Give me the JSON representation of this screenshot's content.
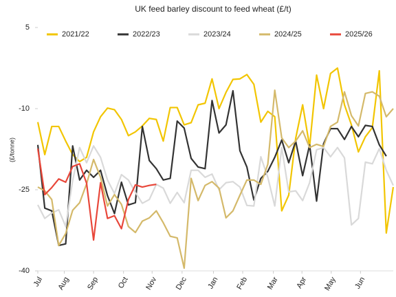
{
  "chart_data": {
    "type": "line",
    "title": "UK feed barley discount to feed wheat (£/t)",
    "y_label": "(£/tonne)",
    "xlim": [
      0,
      51
    ],
    "xticks": [
      {
        "value": 0,
        "label": "Jul"
      },
      {
        "value": 3.8,
        "label": "Aug"
      },
      {
        "value": 8,
        "label": "Sep"
      },
      {
        "value": 12.3,
        "label": "Oct"
      },
      {
        "value": 16.4,
        "label": "Nov"
      },
      {
        "value": 20.7,
        "label": "Dec"
      },
      {
        "value": 25.2,
        "label": "Jan"
      },
      {
        "value": 29.4,
        "label": "Feb"
      },
      {
        "value": 33.8,
        "label": "Mar"
      },
      {
        "value": 37.9,
        "label": "Apr"
      },
      {
        "value": 42.1,
        "label": "May"
      },
      {
        "value": 46.3,
        "label": "Jun"
      }
    ],
    "ylim": [
      -40,
      5
    ],
    "yticks": [
      5,
      -10,
      -25,
      -40
    ],
    "grid": false,
    "legend": "top",
    "series": [
      {
        "name": "2021/22",
        "color": "#f2c500",
        "values": [
          -12.5,
          -18.5,
          -13.3,
          -13.3,
          -16,
          -18.5,
          -19.8,
          -19,
          -14.3,
          -11.5,
          -9.9,
          -10.2,
          -12,
          -15,
          -14.3,
          -13.2,
          -11.8,
          -12,
          -16,
          -9.8,
          -9.8,
          -13,
          -12.6,
          -9.3,
          -9,
          -4.5,
          -10,
          -7,
          -4.6,
          -4.5,
          -3.7,
          -5.5,
          -12.5,
          -10.5,
          -11.5,
          -28.9,
          -26,
          -15.5,
          -9.3,
          -17,
          -3.8,
          -10,
          -3.5,
          -2.5,
          -9.3,
          -13,
          -18,
          -15.2,
          -13.5,
          -3,
          -33,
          -24.5
        ]
      },
      {
        "name": "2022/23",
        "color": "#333333",
        "values": [
          -16.7,
          -28.4,
          -28.9,
          -35.3,
          -35,
          -16.9,
          -23.2,
          -21.4,
          -22.7,
          -21.4,
          -26.1,
          -29.4,
          -23.6,
          -27.8,
          -27.4,
          -13.3,
          -19.6,
          -21.1,
          -23.2,
          -22.9,
          -12.3,
          -13.6,
          -19.2,
          -20.8,
          -21.1,
          -8.5,
          -14.5,
          -13,
          -6.7,
          -17.8,
          -20.8,
          -26.9,
          -22.9,
          -21.6,
          -19,
          -15.8,
          -20,
          -16,
          -22.4,
          -16.7,
          -27.1,
          -16.5,
          -13.7,
          -13.7,
          -15.7,
          -13.3,
          -15.2,
          -13.1,
          -13.3,
          -16.7,
          -18.8
        ]
      },
      {
        "name": "2023/24",
        "color": "#d9d9d9",
        "values": [
          -27.8,
          -30.3,
          -29.3,
          -28.7,
          -31.8,
          -23.3,
          -17.2,
          -20,
          -16.9,
          -19,
          -23.2,
          -25.7,
          -22.2,
          -23.2,
          -25.5,
          -27.5,
          -26.8,
          -24,
          -24.7,
          -27.5,
          -25.5,
          -27.4,
          -21.4,
          -21.4,
          -22.7,
          -22.1,
          -25,
          -23.7,
          -23.5,
          -24.5,
          -27.9,
          -28,
          -18.9,
          -22.7,
          -28,
          -17.2,
          -25.4,
          -25.2,
          -27,
          -23.7,
          -17.6,
          -17.2,
          -18.9,
          -17.2,
          -19.1,
          -31.5,
          -30.3,
          -19.9,
          -20.2,
          -17.4,
          -21.4,
          -24.2
        ]
      },
      {
        "name": "2024/25",
        "color": "#d4b96a",
        "values": [
          -24.5,
          -25.2,
          -26.8,
          -35.3,
          -33.1,
          -28.8,
          -27.4,
          -23.9,
          -19.4,
          -22.7,
          -28,
          -25.9,
          -27.7,
          -31.8,
          -32.9,
          -30.8,
          -30.2,
          -28.9,
          -31.1,
          -33.6,
          -33.9,
          -39.5,
          -22.9,
          -27,
          -24.2,
          -23.5,
          -24.7,
          -30.2,
          -28.9,
          -26,
          -23.2,
          -23.2,
          -24,
          -20.3,
          -6.6,
          -15.4,
          -17.2,
          -16,
          -14.1,
          -17.2,
          -16.6,
          -17,
          -13.3,
          -12.5,
          -6.9,
          -11.3,
          -13.2,
          -7.2,
          -6.9,
          -7.7,
          -11.5,
          -10
        ]
      },
      {
        "name": "2025/26",
        "color": "#e8473a",
        "values": [
          -17.4,
          -25.9,
          -24.6,
          -23,
          -23.6,
          -20.7,
          -20.2,
          -23.8,
          -34.3,
          -23.7,
          -30.3,
          -29.8,
          -32.2,
          -26.8,
          -24.1,
          -24.5,
          -24.2,
          -24
        ]
      }
    ]
  }
}
